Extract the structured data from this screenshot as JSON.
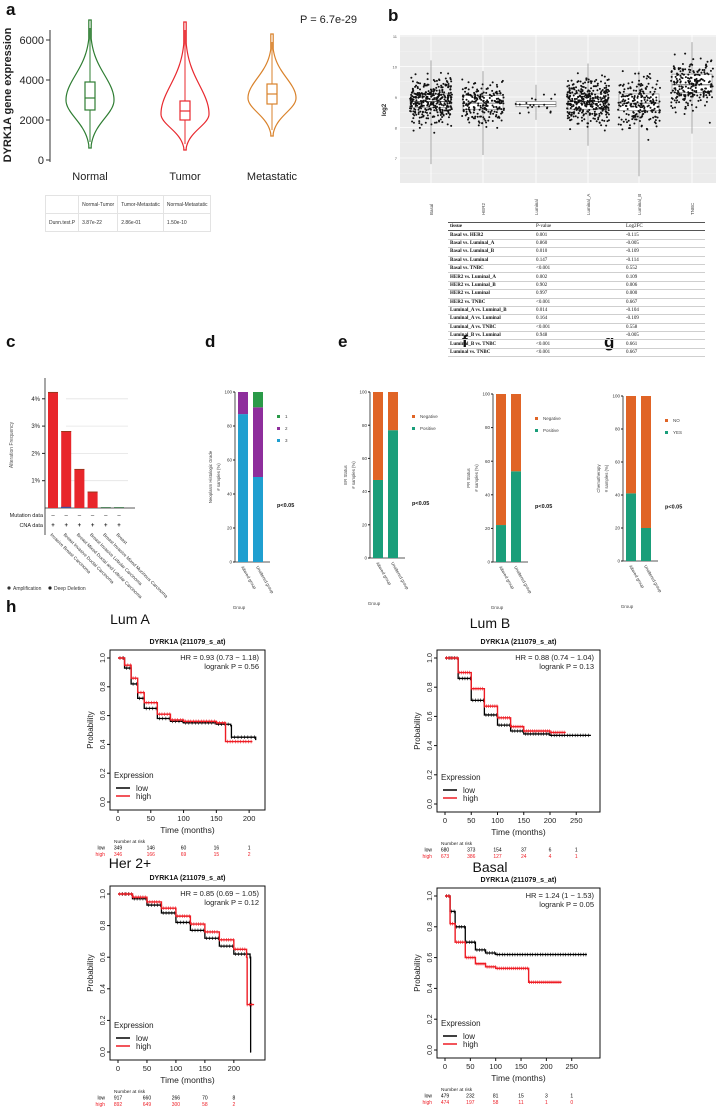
{
  "panel_letters": {
    "a": "a",
    "b": "b",
    "c": "c",
    "d": "d",
    "e": "e",
    "f": "f",
    "g": "g",
    "h": "h"
  },
  "chart_data": [
    {
      "id": "a",
      "type": "violin",
      "ylabel": "DYRK1A gene expression",
      "yticks": [
        0,
        2000,
        4000,
        6000
      ],
      "ylim": [
        0,
        7000
      ],
      "annotation": "P = 6.7e-29",
      "categories": [
        "Normal",
        "Tumor",
        "Metastatic"
      ],
      "colors": [
        "#2e7d32",
        "#e8282e",
        "#d9822b"
      ],
      "stats": [
        {
          "min": 600,
          "q1": 2500,
          "median": 3100,
          "q3": 3900,
          "max": 7000,
          "mode": 3000
        },
        {
          "min": 500,
          "q1": 2000,
          "median": 2450,
          "q3": 2950,
          "max": 6900,
          "mode": 2300
        },
        {
          "min": 1200,
          "q1": 2800,
          "median": 3300,
          "q3": 3800,
          "max": 6300,
          "mode": 3100
        }
      ],
      "table": {
        "headers": [
          "",
          "Normal-Tumor",
          "Tumor-Metastatic",
          "Normal-Metastatic"
        ],
        "rows": [
          [
            "Dunn.test.P",
            "3.87e-22",
            "2.86e-01",
            "1.50e-10"
          ]
        ]
      }
    },
    {
      "id": "b",
      "type": "box-scatter",
      "ylabel": "log2",
      "yticks": [
        7,
        8,
        9,
        10,
        11
      ],
      "ylim": [
        6.3,
        11.2
      ],
      "categories": [
        "Basal",
        "HER2",
        "Luminal",
        "Luminal_A",
        "Luminal_B",
        "TNBC"
      ],
      "stats": [
        {
          "min": 6.8,
          "q1": 8.65,
          "median": 8.85,
          "q3": 9.1,
          "max": 10.2,
          "n": 360
        },
        {
          "min": 7.1,
          "q1": 8.6,
          "median": 8.8,
          "q3": 9.05,
          "max": 9.85,
          "n": 220
        },
        {
          "min": 8.25,
          "q1": 8.68,
          "median": 8.75,
          "q3": 8.85,
          "max": 9.4,
          "n": 20
        },
        {
          "min": 7.4,
          "q1": 8.6,
          "median": 8.85,
          "q3": 9.1,
          "max": 10.1,
          "n": 360
        },
        {
          "min": 6.4,
          "q1": 8.55,
          "median": 8.8,
          "q3": 9.1,
          "max": 9.85,
          "n": 220
        },
        {
          "min": 7.8,
          "q1": 9.15,
          "median": 9.4,
          "q3": 9.75,
          "max": 10.8,
          "n": 230
        }
      ],
      "table": {
        "headers": [
          "tissue",
          "P-value",
          "Log2FC"
        ],
        "rows": [
          [
            "Basal vs. HER2",
            "0.001",
            "-0.115"
          ],
          [
            "Basal vs. Luminal_A",
            "0.860",
            "-0.005"
          ],
          [
            "Basal vs. Luminal_B",
            "0.010",
            "-0.109"
          ],
          [
            "Basal vs. Luminal",
            "0.147",
            "-0.114"
          ],
          [
            "Basal vs. TNBC",
            "<0.001",
            "0.552"
          ],
          [
            "HER2 vs. Luminal_A",
            "0.002",
            "0.109"
          ],
          [
            "HER2 vs. Luminal_B",
            "0.902",
            "0.006"
          ],
          [
            "HER2 vs. Luminal",
            "0.997",
            "0.000"
          ],
          [
            "HER2 vs. TNBC",
            "<0.001",
            "0.667"
          ],
          [
            "Luminal_A vs. Luminal_B",
            "0.014",
            "-0.104"
          ],
          [
            "Luminal_A vs. Luminal",
            "0.164",
            "-0.109"
          ],
          [
            "Luminal_A vs. TNBC",
            "<0.001",
            "0.558"
          ],
          [
            "Luminal_B vs. Luminal",
            "0.948",
            "-0.005"
          ],
          [
            "Luminal_B vs. TNBC",
            "<0.001",
            "0.661"
          ],
          [
            "Luminal vs. TNBC",
            "<0.001",
            "0.667"
          ]
        ]
      }
    },
    {
      "id": "c",
      "type": "bar",
      "ylabel": "Alteration Frequency",
      "yticks": [
        "1%",
        "2%",
        "3%",
        "4%"
      ],
      "ylim": [
        0,
        4
      ],
      "categories": [
        "Invasive Breast Carcinoma",
        "Breast Invasive Ductal Carcinoma",
        "Breast Mixed Ductal and Lobular Carcinoma",
        "Breast Invasive Lobular Carcinoma",
        "Breast Invasive Mixed Mucinous Carcinoma",
        "Breast"
      ],
      "values": [
        4.25,
        2.82,
        1.43,
        0.6,
        0,
        0
      ],
      "rows": [
        "Mutation data",
        "CNA data"
      ],
      "row_marks": [
        "–",
        "+"
      ],
      "legend": [
        "Amplification",
        "Deep Deletion"
      ],
      "colors": [
        "#e8262b",
        "#3d4fa0"
      ]
    },
    {
      "id": "d",
      "type": "stacked-bar",
      "ylabel": [
        "Neoplasm Histologic Grade",
        "# samples (%)"
      ],
      "xlabel": "Group",
      "yticks": [
        0,
        20,
        40,
        60,
        80,
        100
      ],
      "categories": [
        "Altered group",
        "Unaltered group"
      ],
      "series": [
        {
          "name": "3",
          "color": "#1f9fd0",
          "values": [
            87,
            50
          ]
        },
        {
          "name": "2",
          "color": "#8e2e9c",
          "values": [
            13,
            41
          ]
        },
        {
          "name": "1",
          "color": "#2a9a48",
          "values": [
            0,
            9
          ]
        }
      ],
      "legend_order": [
        "1",
        "2",
        "3"
      ],
      "annotation": "p<0.05"
    },
    {
      "id": "e",
      "type": "stacked-bar",
      "ylabel": [
        "ER Status",
        "# samples (%)"
      ],
      "xlabel": "Group",
      "yticks": [
        0,
        20,
        40,
        60,
        80,
        100
      ],
      "categories": [
        "Altered group",
        "Unaltered group"
      ],
      "series": [
        {
          "name": "Positive",
          "color": "#1a9e7a",
          "values": [
            47,
            77
          ]
        },
        {
          "name": "Negative",
          "color": "#e06426",
          "values": [
            53,
            23
          ]
        }
      ],
      "legend_order": [
        "Negative",
        "Positive"
      ],
      "annotation": "p<0.05"
    },
    {
      "id": "f",
      "type": "stacked-bar",
      "ylabel": [
        "PR Status",
        "# samples (%)"
      ],
      "xlabel": "Group",
      "yticks": [
        0,
        20,
        40,
        60,
        80,
        100
      ],
      "categories": [
        "Altered group",
        "Unaltered group"
      ],
      "series": [
        {
          "name": "Positive",
          "color": "#1a9e7a",
          "values": [
            22,
            54
          ]
        },
        {
          "name": "Negative",
          "color": "#e06426",
          "values": [
            78,
            46
          ]
        }
      ],
      "legend_order": [
        "Negative",
        "Positive"
      ],
      "annotation": "p<0.05"
    },
    {
      "id": "g",
      "type": "stacked-bar",
      "ylabel": [
        "Chemotherapy",
        "# samples (%)"
      ],
      "xlabel": "Group",
      "yticks": [
        0,
        20,
        40,
        60,
        80,
        100
      ],
      "categories": [
        "Altered group",
        "Unaltered group"
      ],
      "series": [
        {
          "name": "YES",
          "color": "#1a9e7a",
          "values": [
            41,
            20
          ]
        },
        {
          "name": "NO",
          "color": "#e06426",
          "values": [
            59,
            80
          ]
        }
      ],
      "legend_order": [
        "NO",
        "YES"
      ],
      "annotation": "p<0.05"
    },
    {
      "id": "h1",
      "type": "line",
      "subtype": "kaplan-meier",
      "panel_title": "Lum A",
      "title": "DYRK1A (211079_s_at)",
      "hr": "HR = 0.93 (0.73 − 1.18)",
      "logrank": "logrank P = 0.56",
      "xlabel": "Time (months)",
      "ylabel": "Probability",
      "xticks": [
        0,
        50,
        100,
        150,
        200
      ],
      "yticks": [
        "0.0",
        "0.2",
        "0.4",
        "0.6",
        "0.8",
        "1.0"
      ],
      "xlim": [
        0,
        212
      ],
      "legend_title": "Expression",
      "series": [
        {
          "name": "low",
          "color": "#000000",
          "points": [
            [
              0,
              1
            ],
            [
              10,
              0.93
            ],
            [
              20,
              0.82
            ],
            [
              30,
              0.72
            ],
            [
              40,
              0.65
            ],
            [
              60,
              0.58
            ],
            [
              80,
              0.56
            ],
            [
              100,
              0.55
            ],
            [
              150,
              0.54
            ],
            [
              172,
              0.53
            ],
            [
              173,
              0.45
            ],
            [
              190,
              0.45
            ],
            [
              210,
              0.43
            ]
          ],
          "risk": [
            "349",
            "146",
            "60",
            "16",
            "1"
          ]
        },
        {
          "name": "high",
          "color": "#ee1c24",
          "points": [
            [
              0,
              1
            ],
            [
              10,
              0.95
            ],
            [
              20,
              0.86
            ],
            [
              30,
              0.76
            ],
            [
              40,
              0.69
            ],
            [
              60,
              0.61
            ],
            [
              80,
              0.57
            ],
            [
              100,
              0.56
            ],
            [
              150,
              0.55
            ],
            [
              163,
              0.55
            ],
            [
              164,
              0.42
            ],
            [
              205,
              0.42
            ]
          ],
          "risk": [
            "346",
            "166",
            "69",
            "15",
            "2"
          ]
        }
      ],
      "risk_header": "Number at risk"
    },
    {
      "id": "h2",
      "type": "line",
      "subtype": "kaplan-meier",
      "panel_title": "Lum B",
      "title": "DYRK1A (211079_s_at)",
      "hr": "HR = 0.88 (0.74 − 1.04)",
      "logrank": "logrank P = 0.13",
      "xlabel": "Time (months)",
      "ylabel": "Probability",
      "xticks": [
        0,
        50,
        100,
        150,
        200,
        250
      ],
      "yticks": [
        "0.0",
        "0.2",
        "0.4",
        "0.6",
        "0.8",
        "1.0"
      ],
      "xlim": [
        0,
        280
      ],
      "legend_title": "Expression",
      "series": [
        {
          "name": "low",
          "color": "#000000",
          "points": [
            [
              0,
              1
            ],
            [
              25,
              0.86
            ],
            [
              50,
              0.71
            ],
            [
              75,
              0.61
            ],
            [
              100,
              0.54
            ],
            [
              125,
              0.5
            ],
            [
              150,
              0.48
            ],
            [
              200,
              0.47
            ],
            [
              278,
              0.47
            ]
          ],
          "risk": [
            "680",
            "373",
            "154",
            "37",
            "6",
            "1"
          ]
        },
        {
          "name": "high",
          "color": "#ee1c24",
          "points": [
            [
              0,
              1
            ],
            [
              25,
              0.9
            ],
            [
              50,
              0.79
            ],
            [
              75,
              0.67
            ],
            [
              100,
              0.59
            ],
            [
              125,
              0.53
            ],
            [
              150,
              0.5
            ],
            [
              200,
              0.49
            ],
            [
              230,
              0.49
            ]
          ],
          "risk": [
            "673",
            "386",
            "127",
            "24",
            "4",
            "1"
          ]
        }
      ],
      "risk_header": "Number at risk"
    },
    {
      "id": "h3",
      "type": "line",
      "subtype": "kaplan-meier",
      "panel_title": "Her 2+",
      "title": "DYRK1A (211079_s_at)",
      "hr": "HR = 0.85 (0.69 − 1.05)",
      "logrank": "logrank P = 0.12",
      "xlabel": "Time (months)",
      "ylabel": "Probability",
      "xticks": [
        0,
        50,
        100,
        150,
        200
      ],
      "yticks": [
        "0.0",
        "0.2",
        "0.4",
        "0.6",
        "0.8",
        "1.0"
      ],
      "xlim": [
        0,
        240
      ],
      "legend_title": "Expression",
      "series": [
        {
          "name": "low",
          "color": "#000000",
          "points": [
            [
              0,
              1
            ],
            [
              25,
              0.97
            ],
            [
              50,
              0.93
            ],
            [
              75,
              0.88
            ],
            [
              100,
              0.82
            ],
            [
              125,
              0.77
            ],
            [
              150,
              0.72
            ],
            [
              175,
              0.67
            ],
            [
              200,
              0.62
            ],
            [
              228,
              0.6
            ],
            [
              229,
              0
            ],
            [
              230,
              0
            ]
          ],
          "risk": [
            "917",
            "660",
            "266",
            "70",
            "8"
          ]
        },
        {
          "name": "high",
          "color": "#ee1c24",
          "points": [
            [
              0,
              1
            ],
            [
              25,
              0.98
            ],
            [
              50,
              0.95
            ],
            [
              75,
              0.91
            ],
            [
              100,
              0.86
            ],
            [
              125,
              0.81
            ],
            [
              150,
              0.76
            ],
            [
              175,
              0.71
            ],
            [
              200,
              0.65
            ],
            [
              222,
              0.6
            ],
            [
              223,
              0.3
            ],
            [
              235,
              0.3
            ]
          ],
          "risk": [
            "892",
            "649",
            "300",
            "58",
            "2"
          ]
        }
      ],
      "risk_header": "Number at risk"
    },
    {
      "id": "h4",
      "type": "line",
      "subtype": "kaplan-meier",
      "panel_title": "Basal",
      "title": "DYRK1A (211079_s_at)",
      "hr": "HR = 1.24 (1 − 1.53)",
      "logrank": "logrank P = 0.05",
      "xlabel": "Time (months)",
      "ylabel": "Probability",
      "xticks": [
        0,
        50,
        100,
        150,
        200,
        250
      ],
      "yticks": [
        "0.0",
        "0.2",
        "0.4",
        "0.6",
        "0.8",
        "1.0"
      ],
      "xlim": [
        0,
        290
      ],
      "legend_title": "Expression",
      "series": [
        {
          "name": "low",
          "color": "#000000",
          "points": [
            [
              0,
              1
            ],
            [
              10,
              0.9
            ],
            [
              20,
              0.8
            ],
            [
              40,
              0.7
            ],
            [
              60,
              0.65
            ],
            [
              80,
              0.63
            ],
            [
              100,
              0.62
            ],
            [
              150,
              0.62
            ],
            [
              280,
              0.62
            ]
          ],
          "risk": [
            "479",
            "232",
            "81",
            "15",
            "3",
            "1"
          ]
        },
        {
          "name": "high",
          "color": "#ee1c24",
          "points": [
            [
              0,
              1
            ],
            [
              10,
              0.82
            ],
            [
              20,
              0.7
            ],
            [
              40,
              0.6
            ],
            [
              60,
              0.56
            ],
            [
              80,
              0.54
            ],
            [
              100,
              0.53
            ],
            [
              160,
              0.53
            ],
            [
              165,
              0.44
            ],
            [
              230,
              0.44
            ]
          ],
          "risk": [
            "474",
            "197",
            "58",
            "11",
            "1",
            "0"
          ]
        }
      ],
      "risk_header": "Number at risk"
    }
  ]
}
